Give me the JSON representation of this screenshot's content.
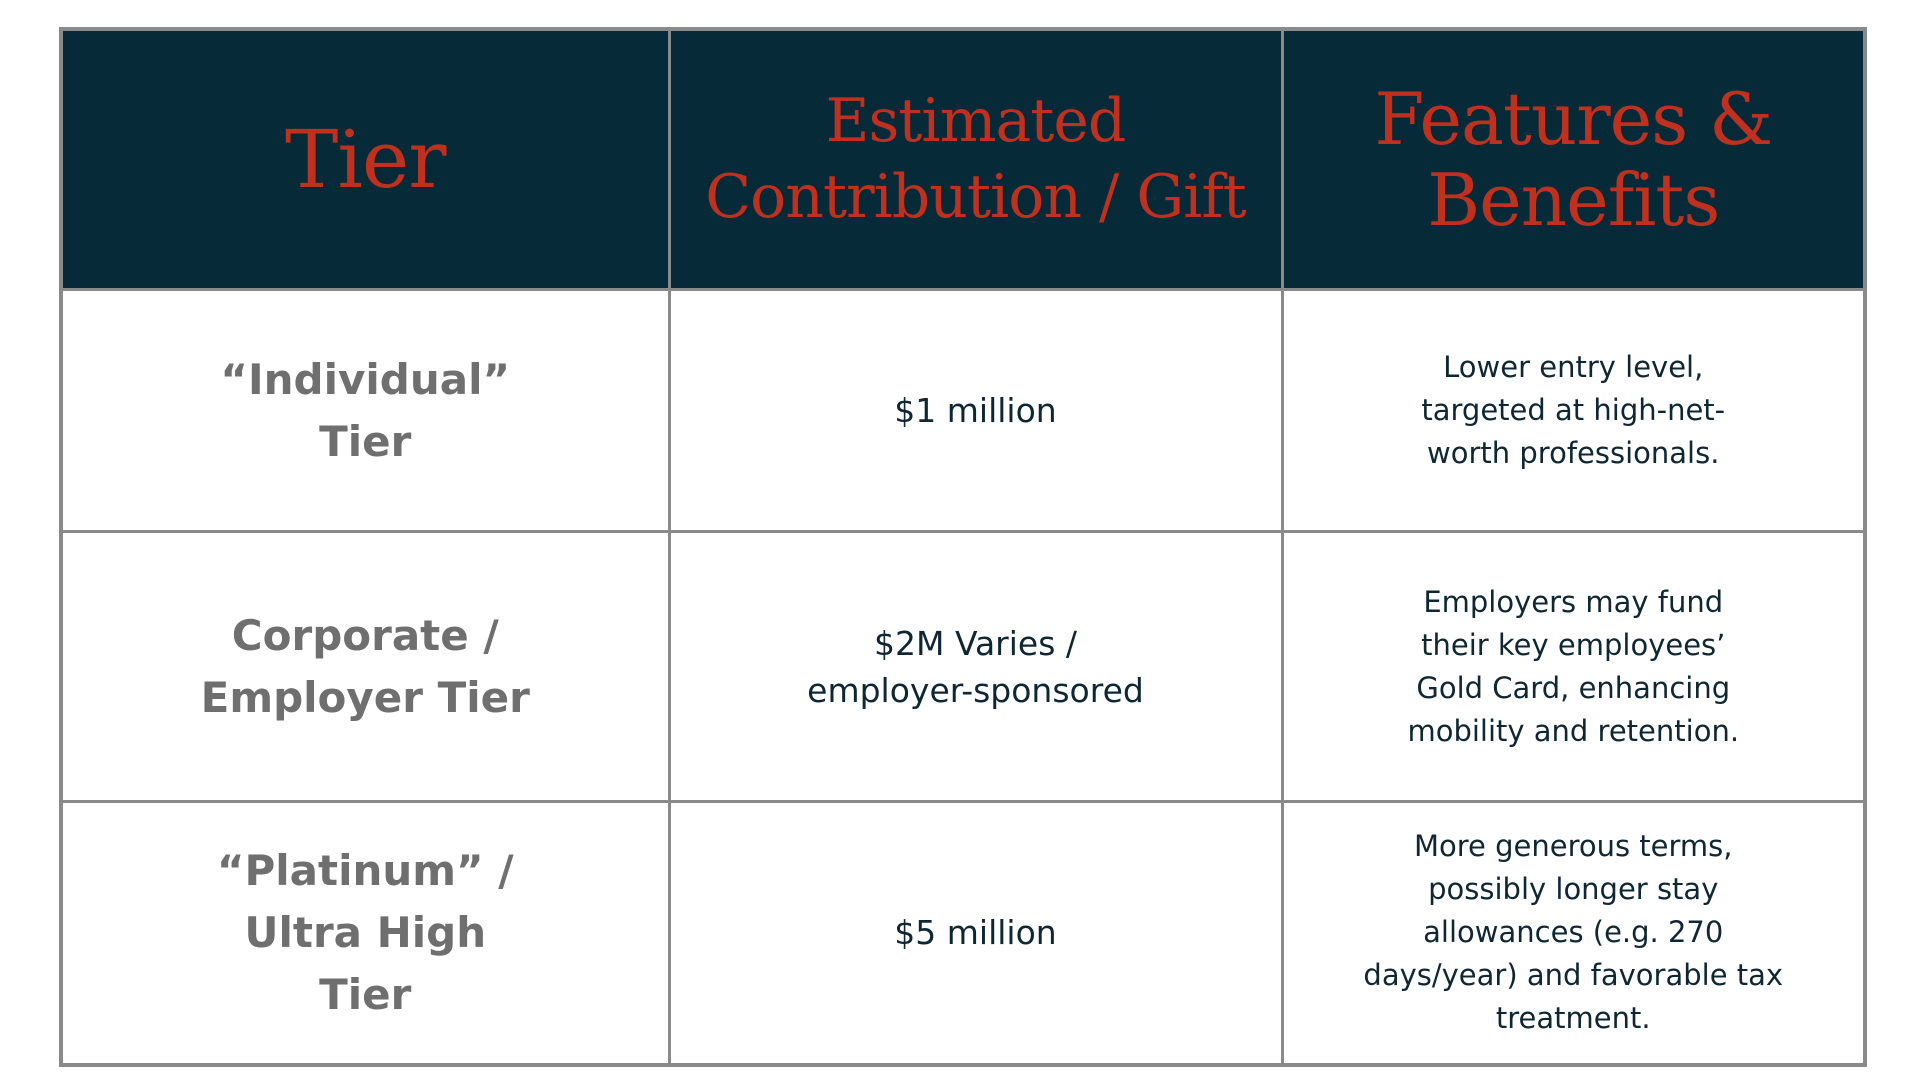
{
  "table": {
    "headers": {
      "tier": "Tier",
      "contribution": [
        "Estimated",
        "Contribution / Gift"
      ],
      "features": [
        "Features &",
        "Benefits"
      ]
    },
    "rows": [
      {
        "tier": [
          "“Individual”",
          "Tier"
        ],
        "contribution": [
          "$1 million"
        ],
        "features": [
          "Lower entry level,",
          "targeted at high-net-",
          "worth professionals."
        ]
      },
      {
        "tier": [
          "Corporate /",
          "Employer Tier"
        ],
        "contribution": [
          "$2M Varies /",
          "employer-sponsored"
        ],
        "features": [
          "Employers may fund",
          "their key employees’",
          "Gold Card, enhancing",
          "mobility and retention."
        ]
      },
      {
        "tier": [
          "“Platinum” /",
          "Ultra High",
          "Tier"
        ],
        "contribution": [
          "$5 million"
        ],
        "features": [
          "More generous terms,",
          "possibly longer stay",
          "allowances (e.g. 270",
          "days/year) and favorable tax",
          "treatment."
        ]
      }
    ]
  },
  "colors": {
    "header_background": "#062a38",
    "header_text": "#c0301e",
    "tier_text": "#6f6f6f",
    "body_text": "#0f2732",
    "grid": "#8a8a8a"
  }
}
